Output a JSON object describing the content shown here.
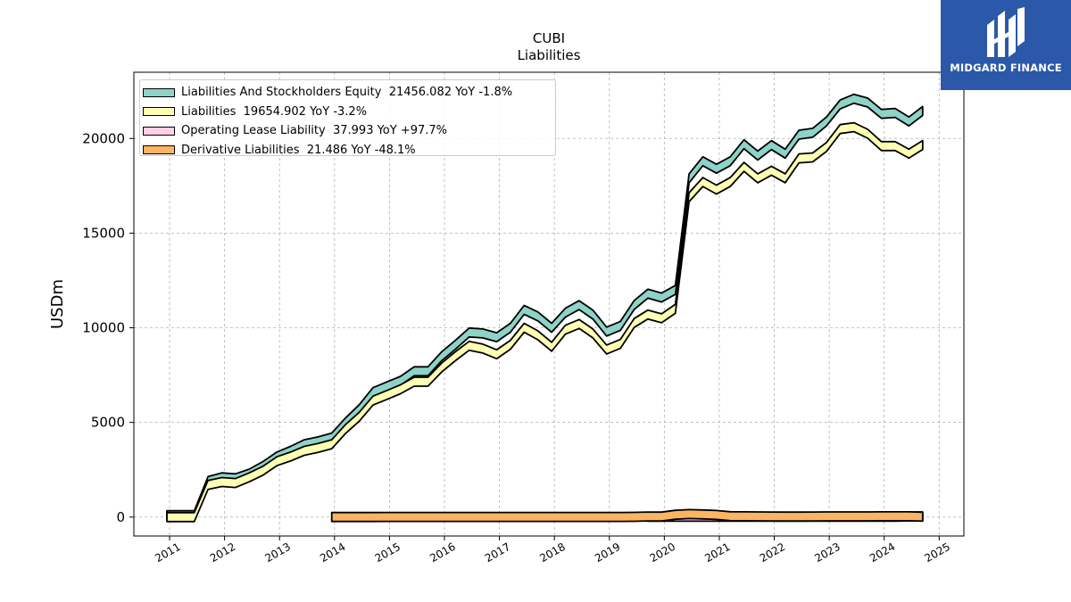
{
  "chart_data": {
    "type": "area",
    "title": "CUBI",
    "subtitle": "Liabilities",
    "ylabel": "USDm",
    "xlabel": "",
    "ylim": [
      -1000,
      23500
    ],
    "xlim": [
      2010.35,
      2025.45
    ],
    "yticks": [
      0,
      5000,
      10000,
      15000,
      20000
    ],
    "ytick_labels": [
      "0",
      "5000",
      "10000",
      "15000",
      "20000"
    ],
    "xticks": [
      2011,
      2012,
      2013,
      2014,
      2015,
      2016,
      2017,
      2018,
      2019,
      2020,
      2021,
      2022,
      2023,
      2024,
      2025
    ],
    "xtick_labels": [
      "2011",
      "2012",
      "2013",
      "2014",
      "2015",
      "2016",
      "2017",
      "2018",
      "2019",
      "2020",
      "2021",
      "2022",
      "2023",
      "2024",
      "2025"
    ],
    "grid": true,
    "legend_position": "top-left",
    "series": [
      {
        "name": "Liabilities And Stockholders Equity",
        "legend": "Liabilities And Stockholders Equity  21456.082 YoY -1.8%",
        "color": "#8dd3c7",
        "x": [
          2010.95,
          2011.2,
          2011.45,
          2011.7,
          2011.95,
          2012.2,
          2012.45,
          2012.7,
          2012.95,
          2013.2,
          2013.45,
          2013.7,
          2013.95,
          2014.2,
          2014.45,
          2014.7,
          2014.95,
          2015.2,
          2015.45,
          2015.7,
          2015.95,
          2016.2,
          2016.45,
          2016.7,
          2016.95,
          2017.2,
          2017.45,
          2017.7,
          2017.95,
          2018.2,
          2018.45,
          2018.7,
          2018.95,
          2019.2,
          2019.45,
          2019.7,
          2019.95,
          2020.2,
          2020.45,
          2020.7,
          2020.95,
          2021.2,
          2021.45,
          2021.7,
          2021.95,
          2022.2,
          2022.45,
          2022.7,
          2022.95,
          2023.2,
          2023.45,
          2023.7,
          2023.95,
          2024.2,
          2024.45,
          2024.7
        ],
        "values": [
          100,
          100,
          100,
          1900,
          2100,
          2050,
          2300,
          2700,
          3200,
          3500,
          3850,
          4000,
          4200,
          5000,
          5700,
          6600,
          6900,
          7200,
          7700,
          7700,
          8500,
          9100,
          9750,
          9700,
          9500,
          10000,
          10950,
          10600,
          10000,
          10800,
          11200,
          10700,
          9800,
          10100,
          11200,
          11800,
          11600,
          12000,
          17900,
          18800,
          18400,
          18800,
          19700,
          19100,
          19650,
          19200,
          20200,
          20300,
          20900,
          21800,
          22100,
          21900,
          21300,
          21350,
          20900,
          21456
        ]
      },
      {
        "name": "Liabilities",
        "legend": "Liabilities  19654.902 YoY -3.2%",
        "color": "#ffffb3",
        "x": [
          2010.95,
          2011.2,
          2011.45,
          2011.7,
          2011.95,
          2012.2,
          2012.45,
          2012.7,
          2012.95,
          2013.2,
          2013.45,
          2013.7,
          2013.95,
          2014.2,
          2014.45,
          2014.7,
          2014.95,
          2015.2,
          2015.45,
          2015.7,
          2015.95,
          2016.2,
          2016.45,
          2016.7,
          2016.95,
          2017.2,
          2017.45,
          2017.7,
          2017.95,
          2018.2,
          2018.45,
          2018.7,
          2018.95,
          2019.2,
          2019.45,
          2019.7,
          2019.95,
          2020.2,
          2020.45,
          2020.7,
          2020.95,
          2021.2,
          2021.45,
          2021.7,
          2021.95,
          2022.2,
          2022.45,
          2022.7,
          2022.95,
          2023.2,
          2023.45,
          2023.7,
          2023.95,
          2024.2,
          2024.45,
          2024.7
        ],
        "values": [
          0,
          0,
          0,
          1700,
          1850,
          1800,
          2100,
          2450,
          2950,
          3200,
          3500,
          3650,
          3850,
          4650,
          5300,
          6150,
          6450,
          6750,
          7150,
          7150,
          7900,
          8500,
          9050,
          8900,
          8600,
          9100,
          10000,
          9600,
          9000,
          9900,
          10200,
          9700,
          8850,
          9150,
          10250,
          10700,
          10500,
          11000,
          16900,
          17700,
          17300,
          17700,
          18500,
          17900,
          18300,
          17900,
          18950,
          19000,
          19550,
          20500,
          20600,
          20250,
          19600,
          19600,
          19200,
          19655
        ]
      },
      {
        "name": "Operating Lease Liability",
        "legend": "Operating Lease Liability  37.993 YoY +97.7%",
        "color": "#ffd1e3",
        "x": [
          2019.7,
          2019.95,
          2020.2,
          2020.45,
          2020.7,
          2020.95,
          2021.2,
          2021.45,
          2021.7,
          2021.95,
          2022.2,
          2022.45,
          2022.7,
          2022.95,
          2023.2,
          2023.45,
          2023.7,
          2023.95,
          2024.2,
          2024.45,
          2024.7
        ],
        "values": [
          20,
          20,
          20,
          20,
          20,
          20,
          19,
          19,
          19,
          19,
          19,
          19,
          19,
          19,
          19,
          19,
          19,
          19,
          19,
          30,
          38
        ]
      },
      {
        "name": "Derivative Liabilities",
        "legend": "Derivative Liabilities  21.486 YoY -48.1%",
        "color": "#fdb462",
        "x": [
          2013.95,
          2014.2,
          2014.45,
          2014.7,
          2014.95,
          2015.2,
          2015.45,
          2015.7,
          2015.95,
          2016.2,
          2016.45,
          2016.7,
          2016.95,
          2017.2,
          2017.45,
          2017.7,
          2017.95,
          2018.2,
          2018.45,
          2018.7,
          2018.95,
          2019.2,
          2019.45,
          2019.7,
          2019.95,
          2020.2,
          2020.45,
          2020.7,
          2020.95,
          2021.2,
          2021.45,
          2021.7,
          2021.95,
          2022.2,
          2022.45,
          2022.7,
          2022.95,
          2023.2,
          2023.45,
          2023.7,
          2023.95,
          2024.2,
          2024.45,
          2024.7
        ],
        "values": [
          5,
          5,
          5,
          5,
          6,
          6,
          6,
          6,
          7,
          7,
          8,
          8,
          8,
          8,
          8,
          8,
          8,
          8,
          8,
          8,
          9,
          10,
          15,
          30,
          25,
          120,
          160,
          140,
          110,
          45,
          40,
          35,
          30,
          25,
          25,
          30,
          35,
          35,
          35,
          35,
          40,
          40,
          40,
          21
        ]
      }
    ]
  },
  "logo": {
    "text": "MIDGARD FINANCE"
  }
}
